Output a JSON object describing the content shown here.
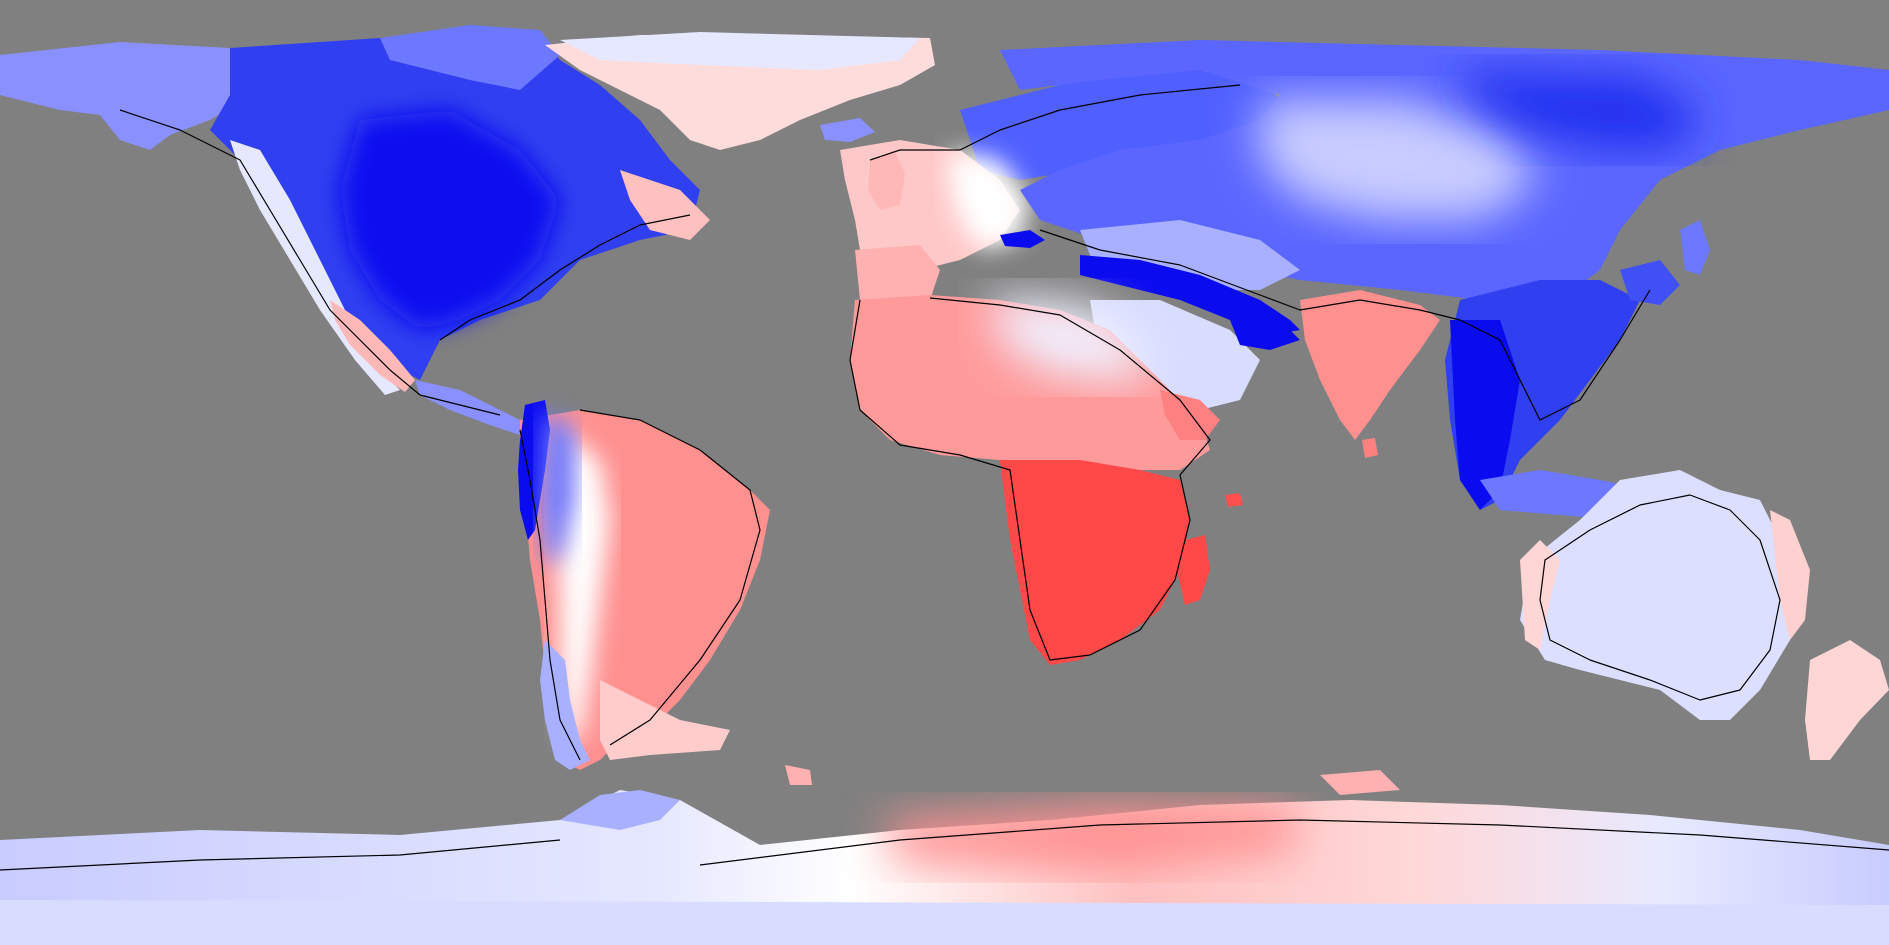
{
  "map": {
    "projection": "equirectangular",
    "legend": "none",
    "title": "",
    "colors": {
      "ocean": "#808080",
      "coastline": "#000000",
      "strong_negative": "#0000e6",
      "negative": "#6c78ff",
      "weak_negative": "#c8ccff",
      "neutral": "#ffffff",
      "weak_positive": "#ffd2d2",
      "positive": "#ff8080",
      "strong_positive": "#ff4040"
    },
    "regions": [
      {
        "name": "north-america",
        "tone": "strong_negative"
      },
      {
        "name": "alaska",
        "tone": "negative"
      },
      {
        "name": "canada-arctic",
        "tone": "negative"
      },
      {
        "name": "greenland",
        "tone": "weak_positive"
      },
      {
        "name": "mexico",
        "tone": "weak_positive"
      },
      {
        "name": "central-america",
        "tone": "negative"
      },
      {
        "name": "south-america",
        "tone": "positive"
      },
      {
        "name": "andes",
        "tone": "strong_negative"
      },
      {
        "name": "patagonia",
        "tone": "weak_negative"
      },
      {
        "name": "europe",
        "tone": "weak_positive"
      },
      {
        "name": "scandinavia",
        "tone": "negative"
      },
      {
        "name": "northern-asia",
        "tone": "negative"
      },
      {
        "name": "central-asia",
        "tone": "weak_negative"
      },
      {
        "name": "himalaya",
        "tone": "strong_negative"
      },
      {
        "name": "north-africa",
        "tone": "positive"
      },
      {
        "name": "southern-africa",
        "tone": "strong_positive"
      },
      {
        "name": "madagascar",
        "tone": "strong_positive"
      },
      {
        "name": "arabia",
        "tone": "weak_negative"
      },
      {
        "name": "india",
        "tone": "positive"
      },
      {
        "name": "southeast-asia",
        "tone": "strong_negative"
      },
      {
        "name": "east-asia",
        "tone": "negative"
      },
      {
        "name": "japan",
        "tone": "negative"
      },
      {
        "name": "indonesia",
        "tone": "negative"
      },
      {
        "name": "australia",
        "tone": "weak_negative"
      },
      {
        "name": "new-zealand",
        "tone": "weak_positive"
      },
      {
        "name": "antarctica-west",
        "tone": "weak_negative"
      },
      {
        "name": "antarctica-east",
        "tone": "weak_positive"
      },
      {
        "name": "south-georgia",
        "tone": "weak_positive"
      }
    ]
  }
}
